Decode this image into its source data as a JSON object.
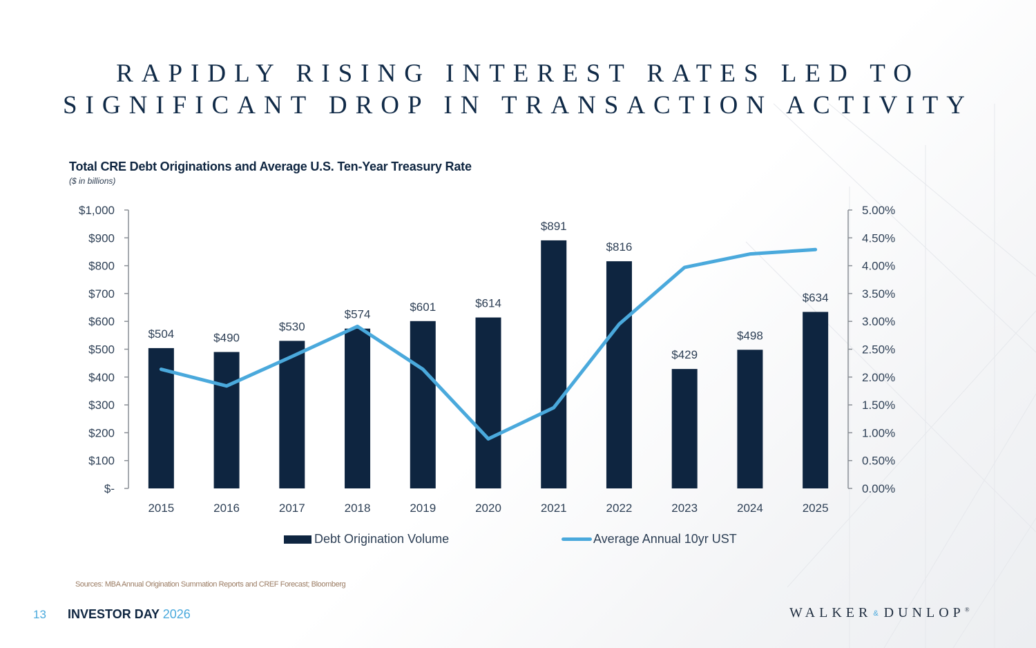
{
  "slide": {
    "title_line1": "RAPIDLY RISING INTEREST RATES LED TO",
    "title_line2": "SIGNIFICANT DROP IN TRANSACTION ACTIVITY",
    "page_number": "13",
    "event_label": "INVESTOR DAY",
    "event_year": "2026",
    "logo_left": "WALKER",
    "logo_amp": "&",
    "logo_right": "DUNLOP",
    "logo_reg": "®",
    "sources": "Sources: MBA Annual Origination Summation Reports and CREF Forecast; Bloomberg"
  },
  "colors": {
    "bar": "#0e2540",
    "line": "#4aa9dc",
    "axis": "#8a8f96"
  },
  "chart_data": {
    "type": "bar",
    "title": "Total CRE Debt Originations and Average U.S. Ten-Year Treasury Rate",
    "subtitle": "($ in billions)",
    "categories": [
      "2015",
      "2016",
      "2017",
      "2018",
      "2019",
      "2020",
      "2021",
      "2022",
      "2023",
      "2024",
      "2025"
    ],
    "series": [
      {
        "name": "Debt Origination Volume",
        "type": "bar",
        "axis": "left",
        "values": [
          504,
          490,
          530,
          574,
          601,
          614,
          891,
          816,
          429,
          498,
          634
        ],
        "labels": [
          "$504",
          "$490",
          "$530",
          "$574",
          "$601",
          "$614",
          "$891",
          "$816",
          "$429",
          "$498",
          "$634"
        ]
      },
      {
        "name": "Average Annual 10yr UST",
        "type": "line",
        "axis": "right",
        "values": [
          2.14,
          1.84,
          2.37,
          2.91,
          2.14,
          0.89,
          1.45,
          2.95,
          3.97,
          4.21,
          4.29
        ]
      }
    ],
    "y_left": {
      "ylim": [
        0,
        1000
      ],
      "ticks": [
        0,
        100,
        200,
        300,
        400,
        500,
        600,
        700,
        800,
        900,
        1000
      ],
      "tick_labels": [
        "$-",
        "$100",
        "$200",
        "$300",
        "$400",
        "$500",
        "$600",
        "$700",
        "$800",
        "$900",
        "$1,000"
      ]
    },
    "y_right": {
      "ylim": [
        0,
        5
      ],
      "ticks": [
        0,
        0.5,
        1,
        1.5,
        2,
        2.5,
        3,
        3.5,
        4,
        4.5,
        5
      ],
      "tick_labels": [
        "0.00%",
        "0.50%",
        "1.00%",
        "1.50%",
        "2.00%",
        "2.50%",
        "3.00%",
        "3.50%",
        "4.00%",
        "4.50%",
        "5.00%"
      ]
    },
    "xlabel": "",
    "grid": false,
    "legend": {
      "position": "bottom",
      "entries": [
        "Debt Origination Volume",
        "Average Annual 10yr UST"
      ]
    }
  }
}
